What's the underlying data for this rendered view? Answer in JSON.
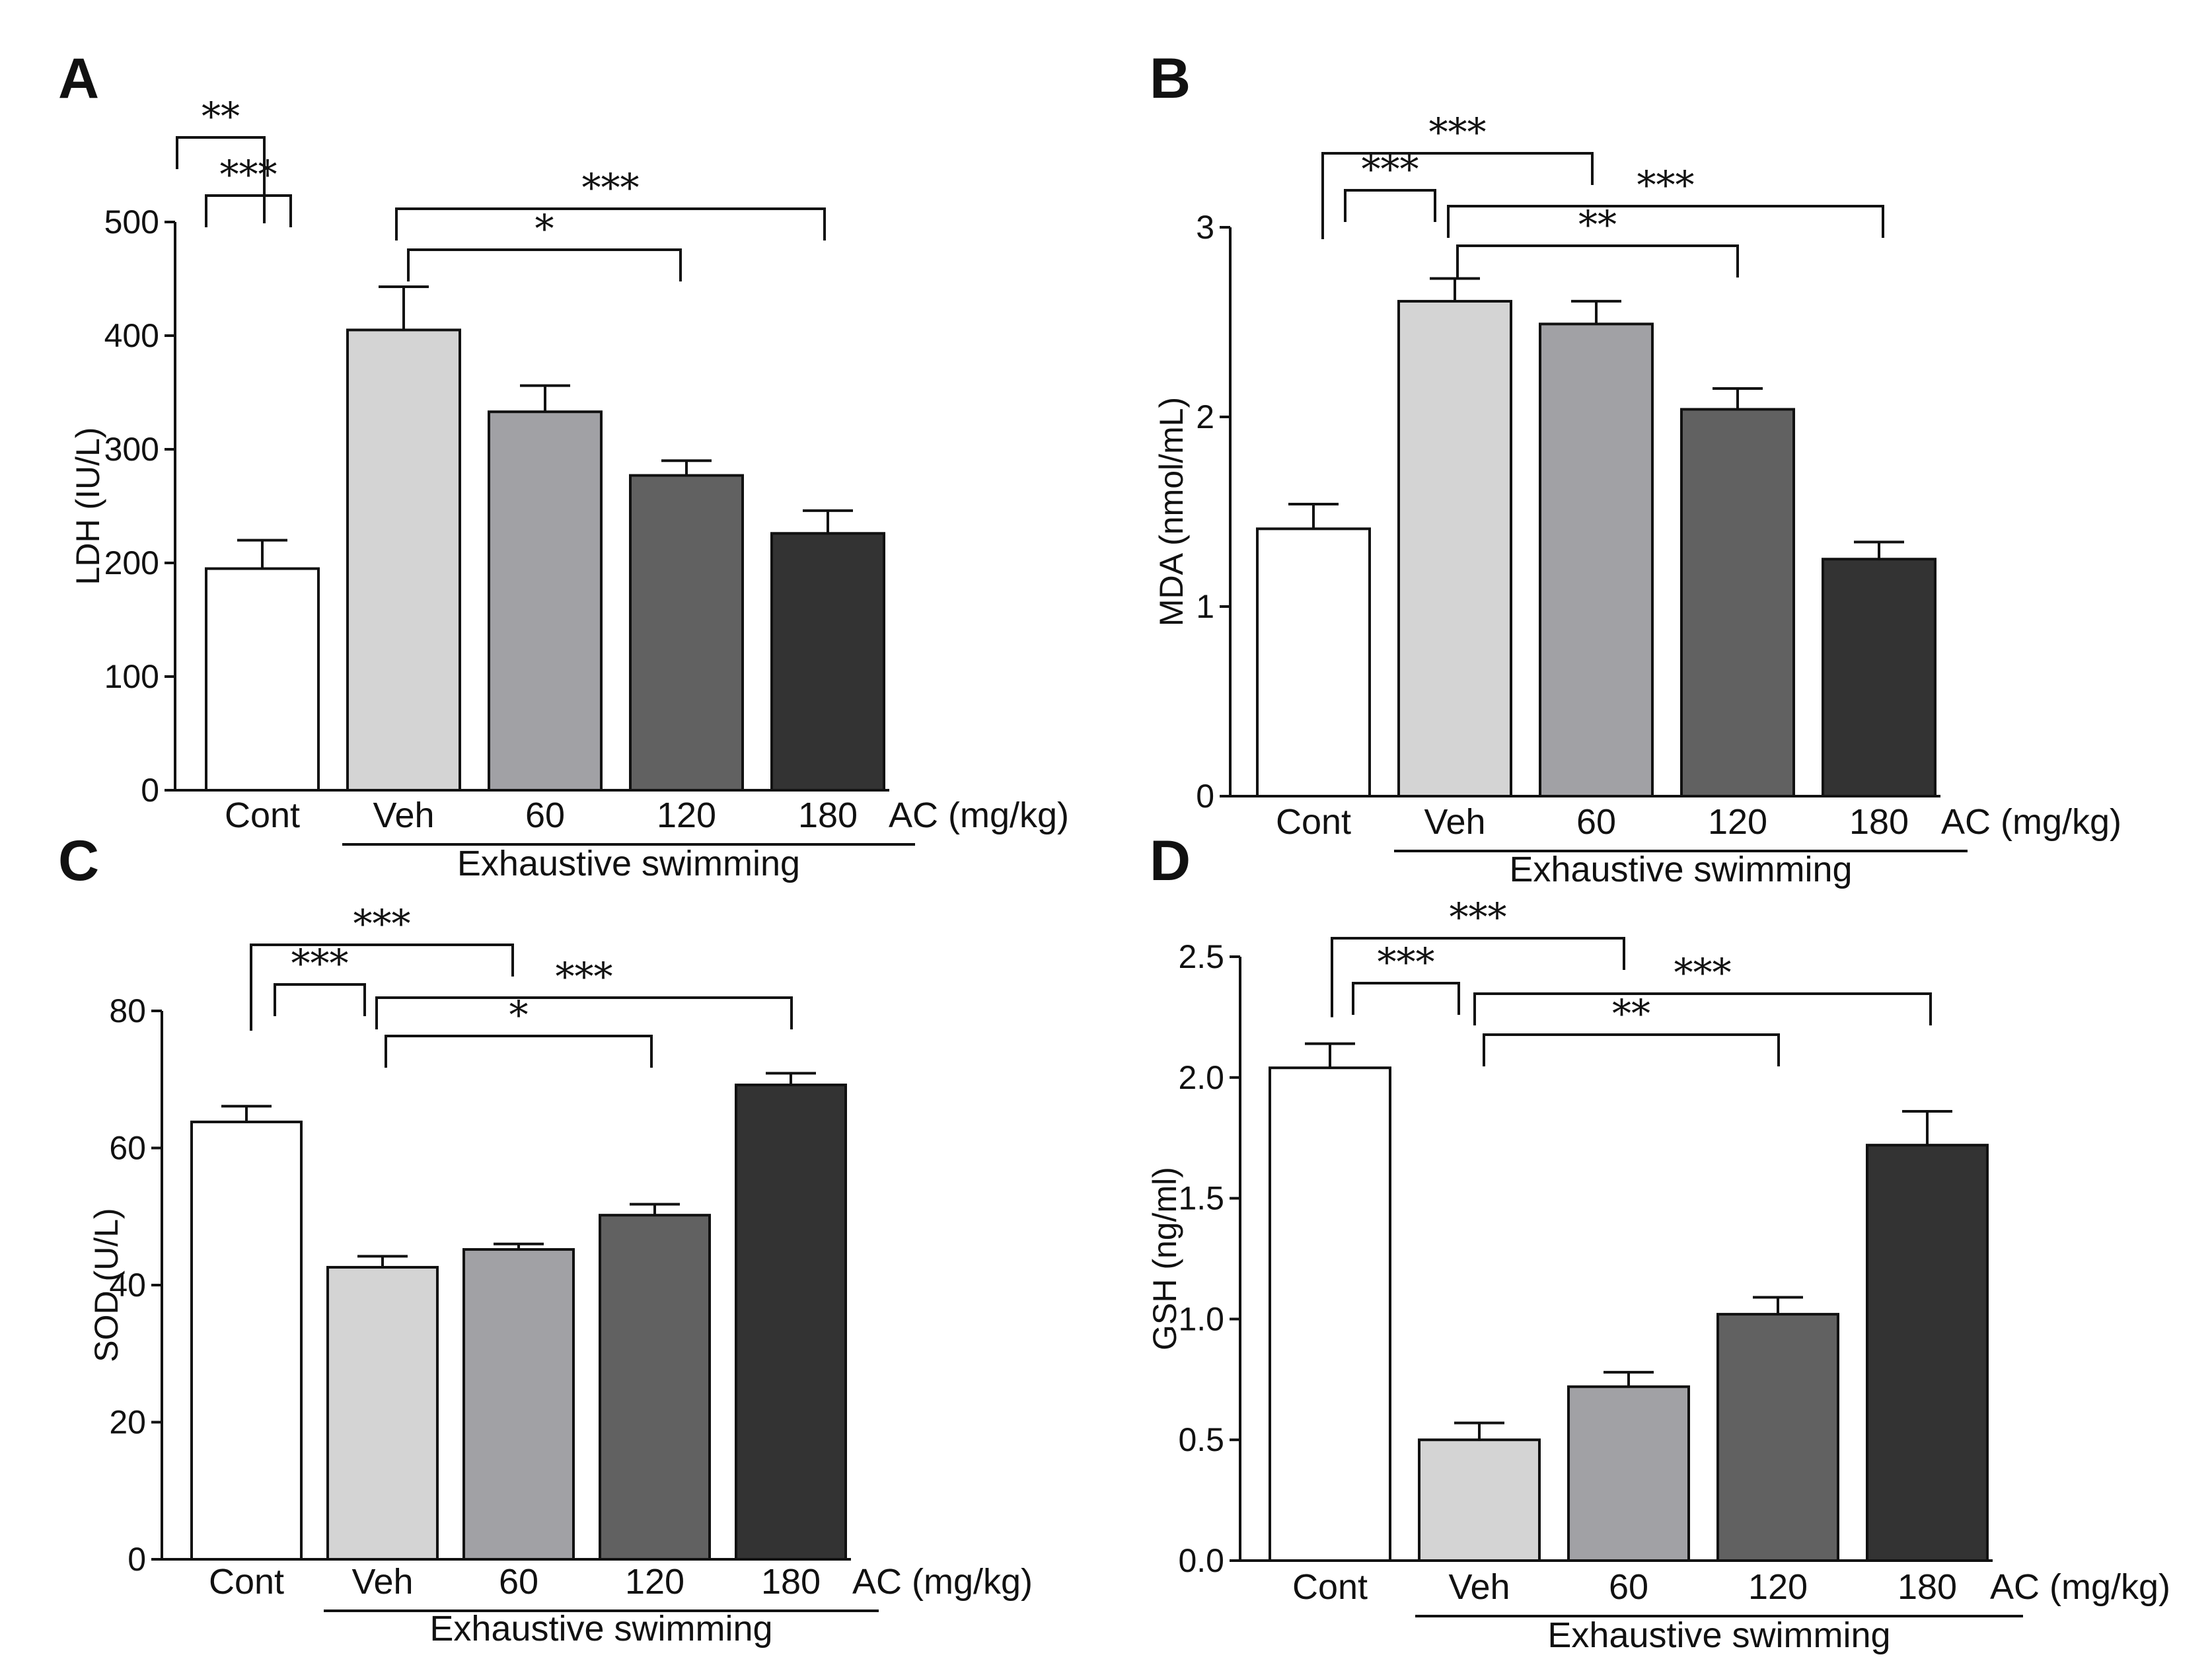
{
  "chart_data": [
    {
      "panel": "A",
      "type": "bar",
      "categories": [
        "Cont",
        "Veh",
        "60",
        "120",
        "180"
      ],
      "values": [
        195,
        405,
        333,
        277,
        226
      ],
      "errors": [
        25,
        38,
        23,
        13,
        20
      ],
      "colors": [
        "#ffffff",
        "#d4d4d4",
        "#a1a1a5",
        "#616161",
        "#333333"
      ],
      "ylabel": "LDH (IU/L)",
      "yticks": [
        "0",
        "100",
        "200",
        "300",
        "400",
        "500"
      ],
      "ylim": [
        0,
        500
      ],
      "unit_label": "AC (mg/kg)",
      "group_label": "Exhaustive swimming",
      "significance": [
        {
          "from": "Cont",
          "to": "60",
          "label": "**"
        },
        {
          "from": "Cont",
          "to": "Veh",
          "label": "***"
        },
        {
          "from": "Veh",
          "to": "180",
          "label": "***"
        },
        {
          "from": "Veh",
          "to": "120",
          "label": "*"
        }
      ]
    },
    {
      "panel": "B",
      "type": "bar",
      "categories": [
        "Cont",
        "Veh",
        "60",
        "120",
        "180"
      ],
      "values": [
        1.41,
        2.61,
        2.49,
        2.04,
        1.25
      ],
      "errors": [
        0.13,
        0.12,
        0.12,
        0.11,
        0.09
      ],
      "colors": [
        "#ffffff",
        "#d4d4d4",
        "#a1a1a5",
        "#616161",
        "#333333"
      ],
      "ylabel": "MDA (nmol/mL)",
      "yticks": [
        "0",
        "1",
        "2",
        "3"
      ],
      "ylim": [
        0,
        3
      ],
      "unit_label": "AC (mg/kg)",
      "group_label": "Exhaustive swimming",
      "significance": [
        {
          "from": "Cont",
          "to": "60",
          "label": "***"
        },
        {
          "from": "Cont",
          "to": "Veh",
          "label": "***"
        },
        {
          "from": "Veh",
          "to": "180",
          "label": "***"
        },
        {
          "from": "Veh",
          "to": "120",
          "label": "**"
        }
      ]
    },
    {
      "panel": "C",
      "type": "bar",
      "categories": [
        "Cont",
        "Veh",
        "60",
        "120",
        "180"
      ],
      "values": [
        63.8,
        42.6,
        45.2,
        50.2,
        69.2
      ],
      "errors": [
        2.3,
        1.6,
        0.8,
        1.6,
        1.7
      ],
      "colors": [
        "#ffffff",
        "#d4d4d4",
        "#a1a1a5",
        "#616161",
        "#333333"
      ],
      "ylabel": "SOD (U/L)",
      "yticks": [
        "0",
        "20",
        "40",
        "60",
        "80"
      ],
      "ylim": [
        0,
        80
      ],
      "unit_label": "AC (mg/kg)",
      "group_label": "Exhaustive swimming",
      "significance": [
        {
          "from": "Cont",
          "to": "60",
          "label": "***"
        },
        {
          "from": "Cont",
          "to": "Veh",
          "label": "***"
        },
        {
          "from": "Veh",
          "to": "180",
          "label": "***"
        },
        {
          "from": "Veh",
          "to": "120",
          "label": "*"
        }
      ]
    },
    {
      "panel": "D",
      "type": "bar",
      "categories": [
        "Cont",
        "Veh",
        "60",
        "120",
        "180"
      ],
      "values": [
        2.04,
        0.5,
        0.72,
        1.02,
        1.72
      ],
      "errors": [
        0.1,
        0.07,
        0.06,
        0.07,
        0.14
      ],
      "colors": [
        "#ffffff",
        "#d4d4d4",
        "#a1a1a5",
        "#616161",
        "#333333"
      ],
      "ylabel": "GSH (ng/ml)",
      "yticks": [
        "0.0",
        "0.5",
        "1.0",
        "1.5",
        "2.0",
        "2.5"
      ],
      "ylim": [
        0,
        2.5
      ],
      "unit_label": "AC (mg/kg)",
      "group_label": "Exhaustive swimming",
      "significance": [
        {
          "from": "Cont",
          "to": "60",
          "label": "***"
        },
        {
          "from": "Cont",
          "to": "Veh",
          "label": "***"
        },
        {
          "from": "Veh",
          "to": "180",
          "label": "***"
        },
        {
          "from": "Veh",
          "to": "120",
          "label": "**"
        }
      ]
    }
  ]
}
